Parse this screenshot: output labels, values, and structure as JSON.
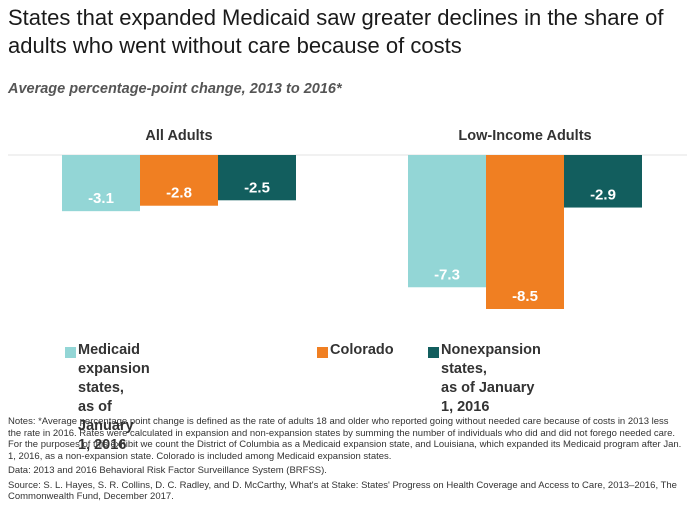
{
  "title": "States that expanded Medicaid saw greater declines in the share of adults who went without care because of costs",
  "subtitle": "Average percentage-point change, 2013 to 2016*",
  "chart_data": {
    "type": "bar",
    "groups": [
      "All Adults",
      "Low-Income Adults"
    ],
    "series": [
      {
        "name": "Medicaid expansion states, as of January 1, 2016",
        "color": "#93D6D6",
        "values": [
          -3.1,
          -7.3
        ]
      },
      {
        "name": "Colorado",
        "color": "#F07F22",
        "values": [
          -2.8,
          -8.5
        ]
      },
      {
        "name": "Nonexpansion states, as of January 1, 2016",
        "color": "#125E5E",
        "values": [
          -2.5,
          -2.9
        ]
      }
    ],
    "value_labels": [
      [
        "-3.1",
        "-7.3"
      ],
      [
        "-2.8",
        "-8.5"
      ],
      [
        "-2.5",
        "-2.9"
      ]
    ],
    "ylim": [
      -8.5,
      0
    ],
    "legend_position": "bottom"
  },
  "legend": [
    {
      "label": "Medicaid expansion states,\nas of January 1, 2016",
      "color": "#93D6D6"
    },
    {
      "label": "Colorado",
      "color": "#F07F22"
    },
    {
      "label": "Nonexpansion states,\nas of January 1, 2016",
      "color": "#125E5E"
    }
  ],
  "notes": {
    "note": "Notes: *Average percentage point change is defined as the rate of adults 18 and older who reported going without needed care because of costs in 2013 less the rate in 2016. Rates were calculated in expansion and non-expansion states by summing the number of individuals who did and did not forego needed care. For the purposes of this exhibit we count the District of Columbia as a Medicaid expansion state, and Louisiana, which expanded its Medicaid program after Jan. 1, 2016, as a non-expansion state. Colorado is included among Medicaid expansion states.",
    "data": "Data: 2013 and 2016 Behavioral Risk Factor Surveillance System (BRFSS).",
    "source": "Source: S. L. Hayes, S. R. Collins, D. C. Radley, and D. McCarthy, What's at Stake: States' Progress on Health Coverage and Access to Care, 2013–2016, The Commonwealth Fund, December 2017."
  }
}
